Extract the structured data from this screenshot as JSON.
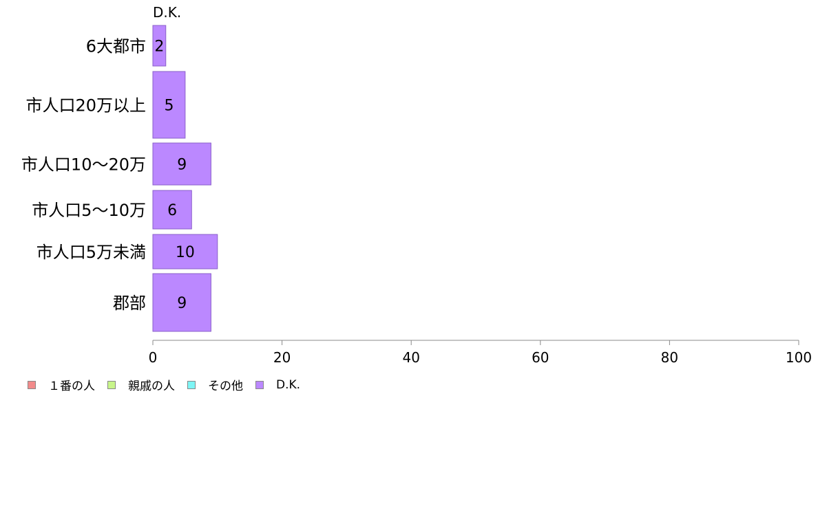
{
  "chart_data": {
    "type": "bar",
    "orientation": "horizontal",
    "stacked": true,
    "categories": [
      "6大都市",
      "市人口20万以上",
      "市人口10〜20万",
      "市人口5〜10万",
      "市人口5万未満",
      "郡部"
    ],
    "series": [
      {
        "name": "１番の人",
        "color": "#f28b8b",
        "values": [
          null,
          null,
          null,
          null,
          null,
          null
        ]
      },
      {
        "name": "親戚の人",
        "color": "#c8f58a",
        "values": [
          null,
          null,
          null,
          null,
          null,
          null
        ]
      },
      {
        "name": "その他",
        "color": "#7ef5f5",
        "values": [
          null,
          null,
          null,
          null,
          null,
          null
        ]
      },
      {
        "name": "D.K.",
        "color": "#bb88ff",
        "values": [
          2,
          5,
          9,
          6,
          10,
          9
        ]
      }
    ],
    "xlim": [
      0,
      100
    ],
    "xticks": [
      0,
      20,
      40,
      60,
      80,
      100
    ],
    "top_series_label": "D.K.",
    "legend_position": "bottom-left",
    "grid": false
  }
}
